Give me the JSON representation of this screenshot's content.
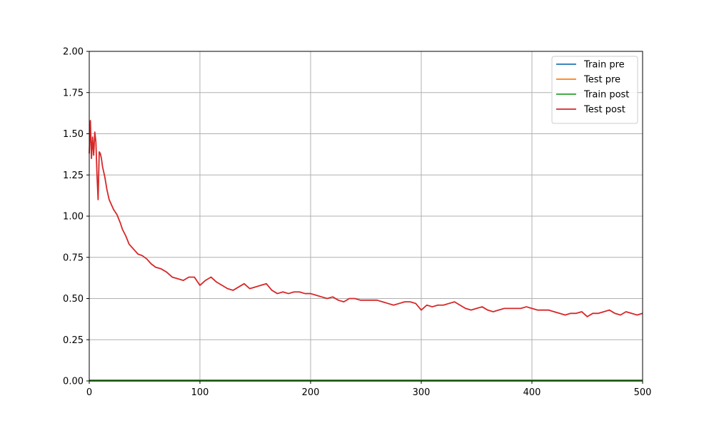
{
  "chart_data": {
    "type": "line",
    "title": "",
    "xlabel": "",
    "ylabel": "",
    "xlim": [
      0,
      500
    ],
    "ylim": [
      0,
      2.0
    ],
    "grid": true,
    "legend_position": "top-right",
    "x_ticks": [
      "0",
      "100",
      "200",
      "300",
      "400",
      "500"
    ],
    "y_ticks": [
      "0.00",
      "0.25",
      "0.50",
      "0.75",
      "1.00",
      "1.25",
      "1.50",
      "1.75",
      "2.00"
    ],
    "series": [
      {
        "name": "Train pre",
        "color": "#1f77b4",
        "x": [
          0,
          500
        ],
        "y": [
          0.0,
          0.0
        ]
      },
      {
        "name": "Test pre",
        "color": "#ff7f0e",
        "x": [
          0,
          500
        ],
        "y": [
          0.0,
          0.0
        ]
      },
      {
        "name": "Train post",
        "color": "#2ca02c",
        "x": [
          0,
          500
        ],
        "y": [
          0.005,
          0.005
        ]
      },
      {
        "name": "Test post",
        "color": "#d62728",
        "x": [
          0,
          1,
          2,
          3,
          4,
          5,
          6,
          7,
          8,
          9,
          10,
          11,
          12,
          14,
          16,
          18,
          20,
          22,
          25,
          28,
          30,
          33,
          36,
          40,
          44,
          48,
          52,
          56,
          60,
          65,
          70,
          75,
          80,
          85,
          90,
          95,
          100,
          105,
          110,
          115,
          120,
          125,
          130,
          135,
          140,
          145,
          150,
          155,
          160,
          165,
          170,
          175,
          180,
          185,
          190,
          195,
          200,
          205,
          210,
          215,
          220,
          225,
          230,
          235,
          240,
          245,
          250,
          255,
          260,
          265,
          270,
          275,
          280,
          285,
          290,
          295,
          300,
          305,
          310,
          315,
          320,
          325,
          330,
          335,
          340,
          345,
          350,
          355,
          360,
          365,
          370,
          375,
          380,
          385,
          390,
          395,
          400,
          405,
          410,
          415,
          420,
          425,
          430,
          435,
          440,
          445,
          450,
          455,
          460,
          465,
          470,
          475,
          480,
          485,
          490,
          495,
          500
        ],
        "y": [
          1.38,
          1.58,
          1.35,
          1.48,
          1.37,
          1.51,
          1.45,
          1.25,
          1.1,
          1.39,
          1.38,
          1.35,
          1.3,
          1.24,
          1.16,
          1.1,
          1.07,
          1.04,
          1.01,
          0.96,
          0.92,
          0.88,
          0.83,
          0.8,
          0.77,
          0.76,
          0.74,
          0.71,
          0.69,
          0.68,
          0.66,
          0.63,
          0.62,
          0.61,
          0.63,
          0.63,
          0.58,
          0.61,
          0.63,
          0.6,
          0.58,
          0.56,
          0.55,
          0.57,
          0.59,
          0.56,
          0.57,
          0.58,
          0.59,
          0.55,
          0.53,
          0.54,
          0.53,
          0.54,
          0.54,
          0.53,
          0.53,
          0.52,
          0.51,
          0.5,
          0.51,
          0.49,
          0.48,
          0.5,
          0.5,
          0.49,
          0.49,
          0.49,
          0.49,
          0.48,
          0.47,
          0.46,
          0.47,
          0.48,
          0.48,
          0.47,
          0.43,
          0.46,
          0.45,
          0.46,
          0.46,
          0.47,
          0.48,
          0.46,
          0.44,
          0.43,
          0.44,
          0.45,
          0.43,
          0.42,
          0.43,
          0.44,
          0.44,
          0.44,
          0.44,
          0.45,
          0.44,
          0.43,
          0.43,
          0.43,
          0.42,
          0.41,
          0.4,
          0.41,
          0.41,
          0.42,
          0.39,
          0.41,
          0.41,
          0.42,
          0.43,
          0.41,
          0.4,
          0.42,
          0.41,
          0.4,
          0.41
        ]
      }
    ]
  }
}
